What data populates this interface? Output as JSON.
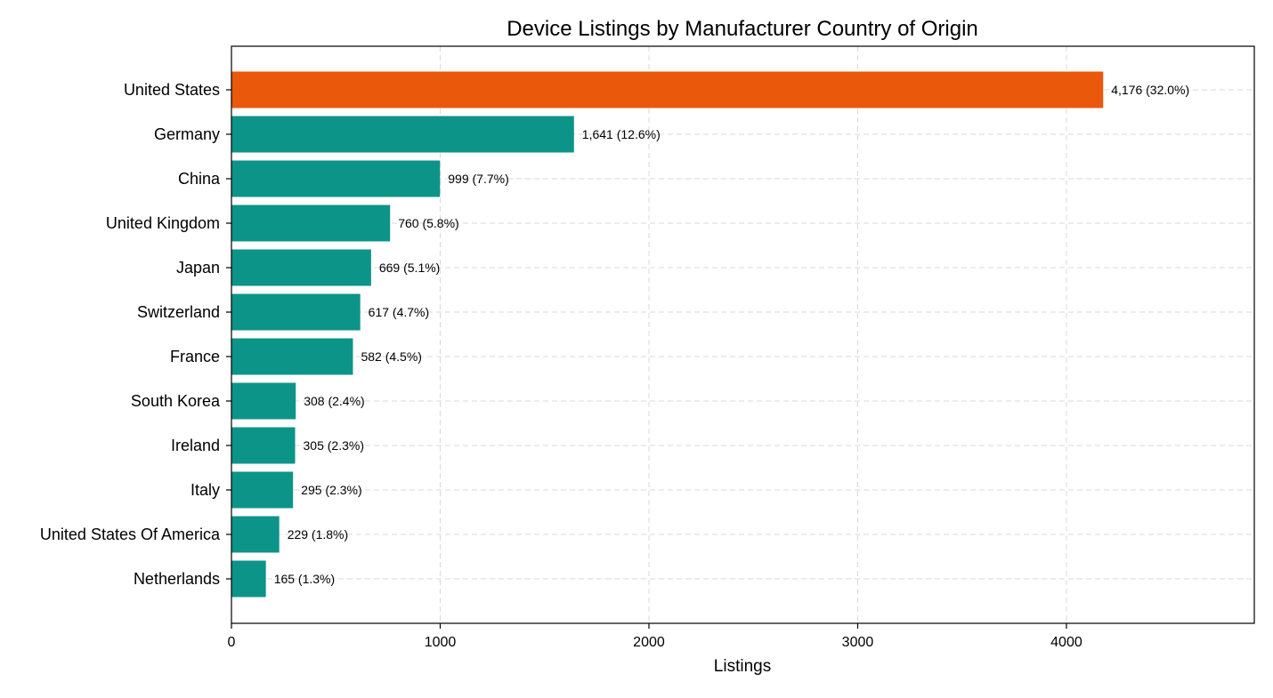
{
  "chart_data": {
    "type": "bar",
    "orientation": "horizontal",
    "title": "Device Listings by Manufacturer Country of Origin",
    "xlabel": "Listings",
    "ylabel": "",
    "xlim": [
      0,
      4900
    ],
    "xticks": [
      0,
      1000,
      2000,
      3000,
      4000
    ],
    "xtick_labels": [
      "0",
      "1000",
      "2000",
      "3000",
      "4000"
    ],
    "grid": true,
    "categories": [
      "United States",
      "Germany",
      "China",
      "United Kingdom",
      "Japan",
      "Switzerland",
      "France",
      "South Korea",
      "Ireland",
      "Italy",
      "United States Of America",
      "Netherlands"
    ],
    "values": [
      4176,
      1641,
      999,
      760,
      669,
      617,
      582,
      308,
      305,
      295,
      229,
      165
    ],
    "data_labels": [
      "4,176 (32.0%)",
      "1,641 (12.6%)",
      "999 (7.7%)",
      "760 (5.8%)",
      "669 (5.1%)",
      "617 (4.7%)",
      "582 (4.5%)",
      "308 (2.4%)",
      "305 (2.3%)",
      "295 (2.3%)",
      "229 (1.8%)",
      "165 (1.3%)"
    ],
    "colors": {
      "highlight": "#ea580c",
      "default": "#0d9488"
    },
    "highlight_index": 0
  }
}
